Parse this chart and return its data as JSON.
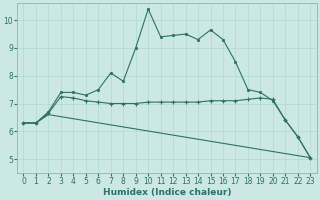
{
  "xlabel": "Humidex (Indice chaleur)",
  "bg_color": "#cce8e4",
  "grid_color": "#b0d8d0",
  "line_color": "#2d7068",
  "xlim": [
    -0.5,
    23.5
  ],
  "ylim": [
    4.5,
    10.6
  ],
  "xticks": [
    0,
    1,
    2,
    3,
    4,
    5,
    6,
    7,
    8,
    9,
    10,
    11,
    12,
    13,
    14,
    15,
    16,
    17,
    18,
    19,
    20,
    21,
    22,
    23
  ],
  "yticks": [
    5,
    6,
    7,
    8,
    9,
    10
  ],
  "line1_x": [
    0,
    1,
    2,
    3,
    4,
    5,
    6,
    7,
    8,
    9,
    10,
    11,
    12,
    13,
    14,
    15,
    16,
    17,
    18,
    19,
    20,
    21,
    22,
    23
  ],
  "line1_y": [
    6.3,
    6.3,
    6.7,
    7.4,
    7.4,
    7.3,
    7.5,
    8.1,
    7.8,
    9.0,
    10.4,
    9.4,
    9.45,
    9.5,
    9.3,
    9.65,
    9.3,
    8.5,
    7.5,
    7.4,
    7.1,
    6.4,
    5.8,
    5.05
  ],
  "line2_x": [
    0,
    1,
    2,
    3,
    4,
    5,
    6,
    7,
    8,
    9,
    10,
    11,
    12,
    13,
    14,
    15,
    16,
    17,
    18,
    19,
    20,
    21,
    22,
    23
  ],
  "line2_y": [
    6.3,
    6.3,
    6.65,
    7.25,
    7.2,
    7.1,
    7.05,
    7.0,
    7.0,
    7.0,
    7.05,
    7.05,
    7.05,
    7.05,
    7.05,
    7.1,
    7.1,
    7.1,
    7.15,
    7.2,
    7.15,
    6.4,
    5.8,
    5.05
  ],
  "line3_x": [
    0,
    1,
    2,
    23
  ],
  "line3_y": [
    6.3,
    6.3,
    6.6,
    5.05
  ]
}
